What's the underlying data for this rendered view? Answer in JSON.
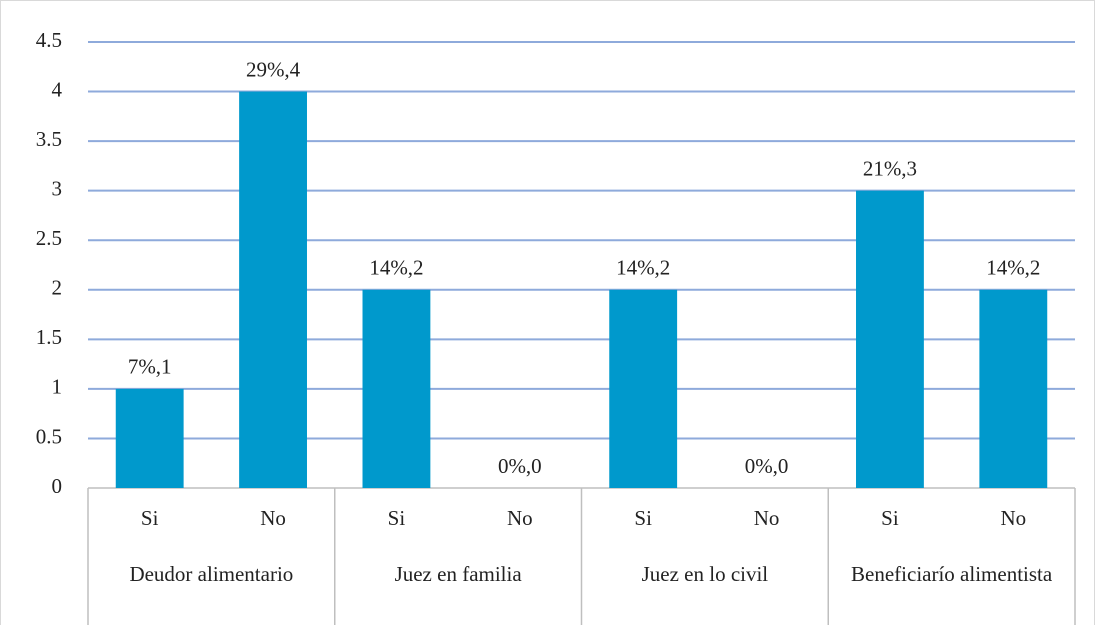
{
  "chart_data": {
    "type": "bar",
    "categories": [
      "Si",
      "No",
      "Si",
      "No",
      "Si",
      "No",
      "Si",
      "No"
    ],
    "groups": [
      "Deudor alimentario",
      "Juez en familia",
      "Juez en lo civil",
      "Beneficiarío alimentista"
    ],
    "values": [
      1,
      4,
      2,
      0,
      2,
      0,
      3,
      2
    ],
    "value_labels": [
      "7%,1",
      "29%,4",
      "14%,2",
      "0%,0",
      "14%,2",
      "0%,0",
      "21%,3",
      "14%,2"
    ],
    "color": "#0099cc",
    "ylim": [
      0,
      4.5
    ],
    "yticks": [
      0,
      0.5,
      1,
      1.5,
      2,
      2.5,
      3,
      3.5,
      4,
      4.5
    ],
    "grid": true
  }
}
